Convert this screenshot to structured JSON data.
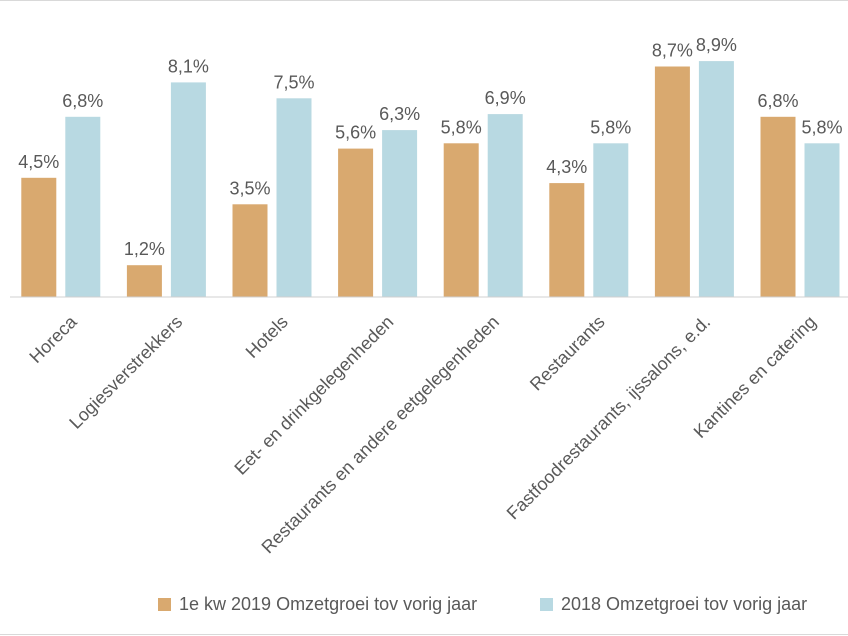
{
  "chart_data": {
    "type": "bar",
    "title": "",
    "xlabel": "",
    "ylabel": "",
    "ylim": [
      0,
      9.2
    ],
    "grid": false,
    "legend_position": "bottom",
    "categories": [
      "Horeca",
      "Logiesverstrekkers",
      "Hotels",
      "Eet- en drinkgelegenheden",
      "Restaurants en andere eetgelegenheden",
      "Restaurants",
      "Fastfoodrestaurants, ijssalons, e.d.",
      "Kantines en catering"
    ],
    "series": [
      {
        "name": "1e kw 2019 Omzetgroei tov vorig jaar",
        "color": "#d9a96f",
        "values": [
          4.5,
          1.2,
          3.5,
          5.6,
          5.8,
          4.3,
          8.7,
          6.8
        ],
        "labels": [
          "4,5%",
          "1,2%",
          "3,5%",
          "5,6%",
          "5,8%",
          "4,3%",
          "8,7%",
          "6,8%"
        ]
      },
      {
        "name": "2018 Omzetgroei tov vorig jaar",
        "color": "#b8d9e2",
        "values": [
          6.8,
          8.1,
          7.5,
          6.3,
          6.9,
          5.8,
          8.9,
          5.8
        ],
        "labels": [
          "6,8%",
          "8,1%",
          "7,5%",
          "6,3%",
          "6,9%",
          "5,8%",
          "8,9%",
          "5,8%"
        ]
      }
    ]
  }
}
